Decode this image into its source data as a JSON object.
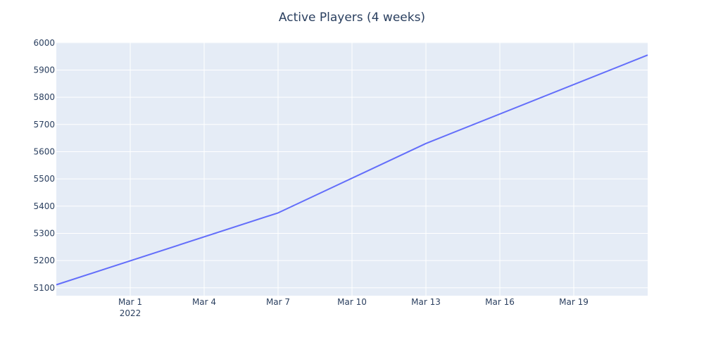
{
  "chart_data": {
    "type": "line",
    "title": "Active Players (4 weeks)",
    "xlabel": "",
    "ylabel": "",
    "x_start": "2022-02-26",
    "x_ticks": [
      {
        "date": "2022-03-01",
        "label": "Mar 1",
        "sublabel": "2022"
      },
      {
        "date": "2022-03-04",
        "label": "Mar 4",
        "sublabel": ""
      },
      {
        "date": "2022-03-07",
        "label": "Mar 7",
        "sublabel": ""
      },
      {
        "date": "2022-03-10",
        "label": "Mar 10",
        "sublabel": ""
      },
      {
        "date": "2022-03-13",
        "label": "Mar 13",
        "sublabel": ""
      },
      {
        "date": "2022-03-16",
        "label": "Mar 16",
        "sublabel": ""
      },
      {
        "date": "2022-03-19",
        "label": "Mar 19",
        "sublabel": ""
      }
    ],
    "y_ticks": [
      5100,
      5200,
      5300,
      5400,
      5500,
      5600,
      5700,
      5800,
      5900,
      6000
    ],
    "xlim": [
      "2022-02-26",
      "2022-03-22"
    ],
    "ylim": [
      5071,
      6002
    ],
    "grid": true,
    "series": [
      {
        "name": "",
        "color": "#636efa",
        "points": [
          {
            "x": "2022-02-26",
            "y": 5111
          },
          {
            "x": "2022-03-07",
            "y": 5375
          },
          {
            "x": "2022-03-13",
            "y": 5630
          },
          {
            "x": "2022-03-22",
            "y": 5955
          }
        ]
      }
    ],
    "plot_bgcolor": "#e5ecf6",
    "grid_color": "#ffffff"
  }
}
